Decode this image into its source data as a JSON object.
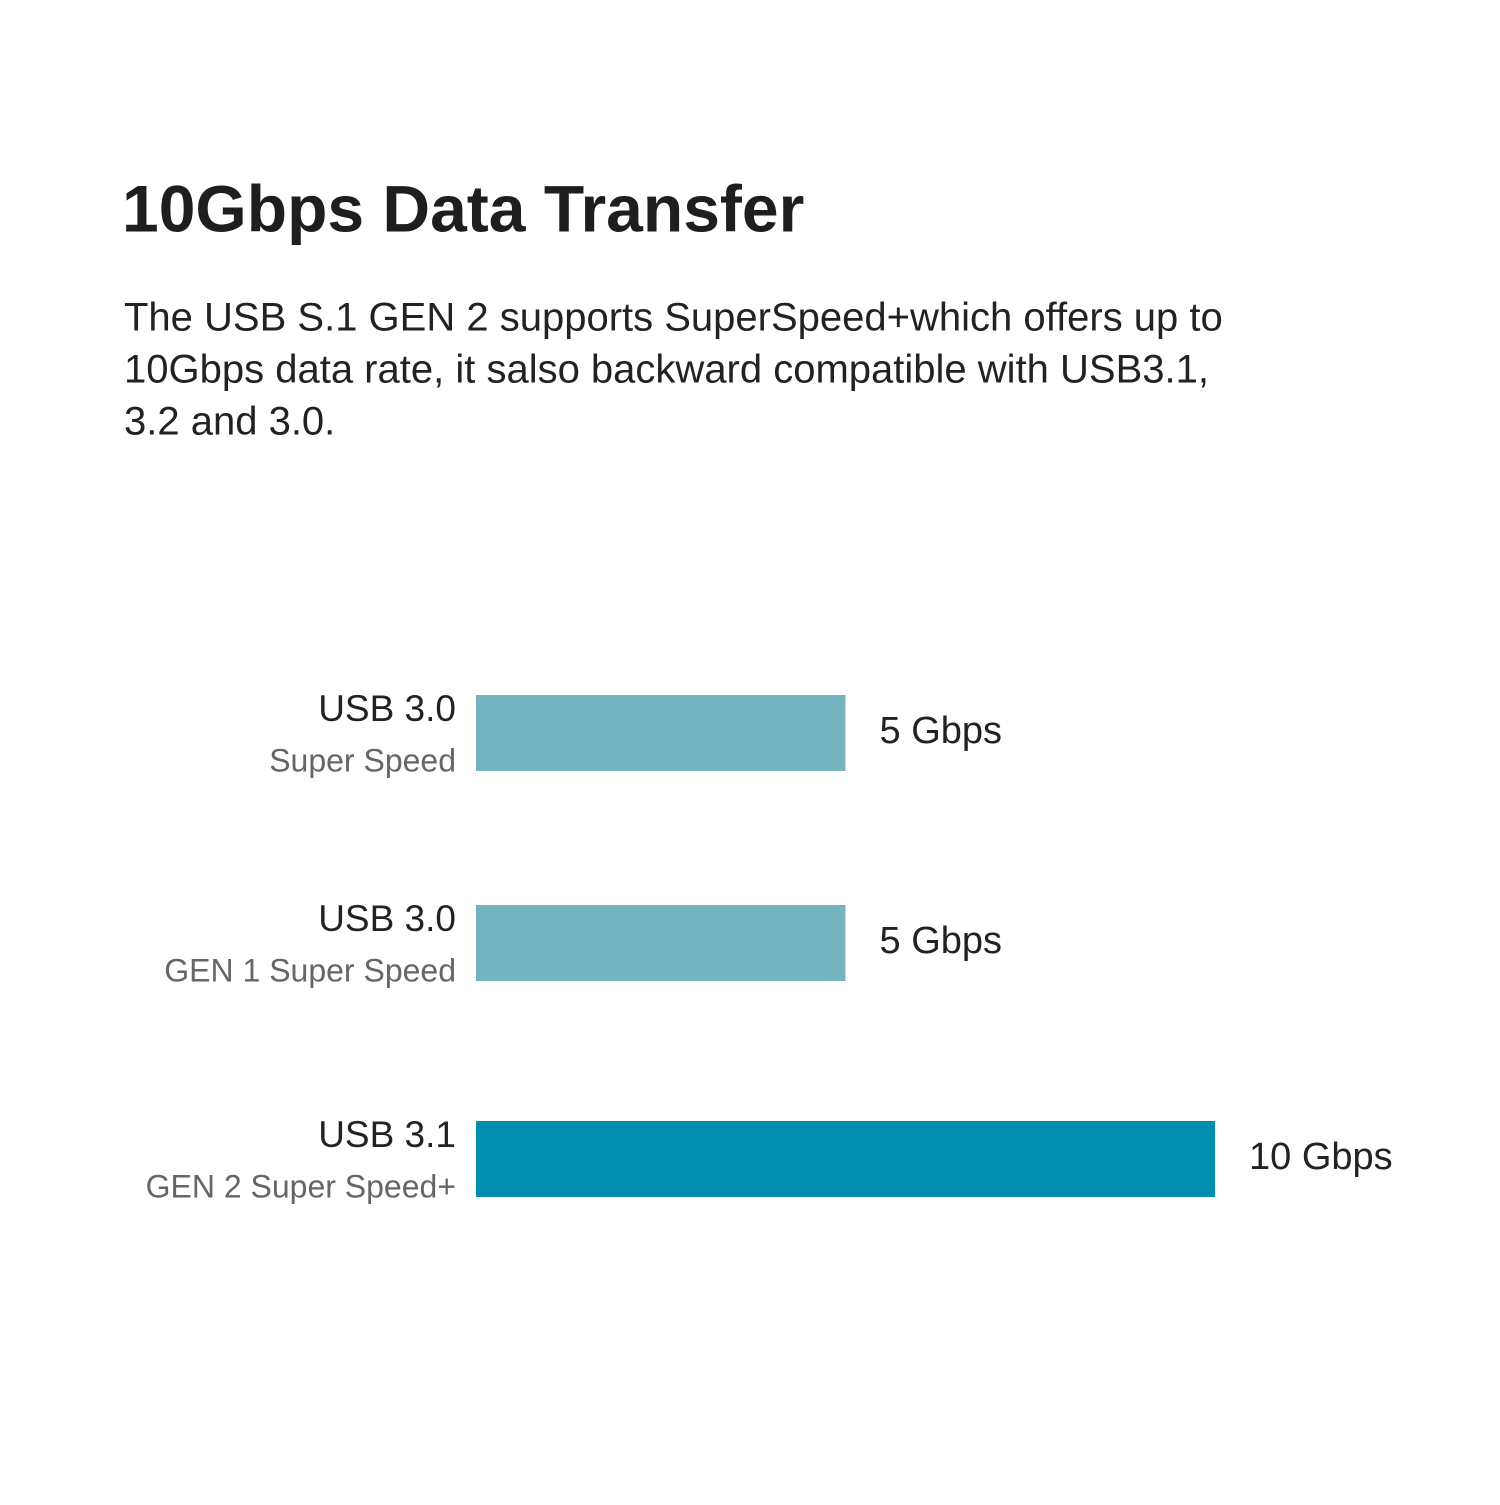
{
  "chart_data": {
    "type": "bar",
    "orientation": "horizontal",
    "title": "10Gbps Data Transfer",
    "description_lines": [
      "The USB S.1 GEN 2 supports SuperSpeed+which offers up to",
      "10Gbps data rate, it salso backward compatible with USB3.1,",
      "3.2 and 3.0."
    ],
    "categories": [
      "USB 3.0",
      "USB 3.0",
      "USB 3.1"
    ],
    "category_subtitles": [
      "Super Speed",
      "GEN 1 Super Speed",
      "GEN 2 Super Speed+"
    ],
    "values": [
      5,
      5,
      10
    ],
    "value_labels": [
      "5 Gbps",
      "5 Gbps",
      "10 Gbps"
    ],
    "colors": [
      "#74b3c0",
      "#74b3c0",
      "#008fae"
    ]
  }
}
